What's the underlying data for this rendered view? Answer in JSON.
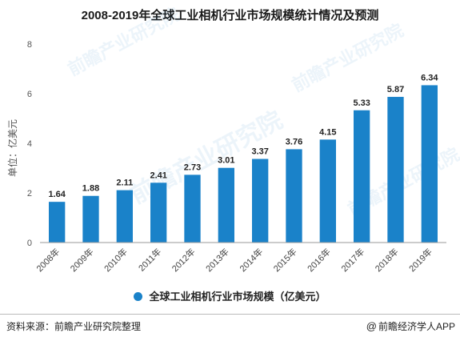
{
  "chart_data": {
    "type": "bar",
    "title": "2008-2019年全球工业相机行业市场规模统计情况及预测",
    "ylabel": "单位：亿美元",
    "categories": [
      "2008年",
      "2009年",
      "2010年",
      "2011年",
      "2012年",
      "2013年",
      "2014年",
      "2015年",
      "2016年",
      "2017年",
      "2018年",
      "2019年"
    ],
    "series": [
      {
        "name": "全球工业相机行业市场规模（亿美元）",
        "values": [
          1.64,
          1.88,
          2.11,
          2.41,
          2.73,
          3.01,
          3.37,
          3.76,
          4.15,
          5.33,
          5.87,
          6.34
        ]
      }
    ],
    "ylim": [
      0,
      8
    ],
    "yticks": [
      "0",
      "2",
      "4",
      "6",
      "8"
    ],
    "value_labels": [
      "1.64",
      "1.88",
      "2.11",
      "2.41",
      "2.73",
      "3.01",
      "3.37",
      "3.76",
      "4.15",
      "5.33",
      "5.87",
      "6.34"
    ],
    "grid": false,
    "legend": "bottom",
    "bar_color": "#1a82c9"
  },
  "footer": {
    "source": "资料来源：前瞻产业研究院整理",
    "credit_symbol": "@",
    "credit": "前瞻经济学人APP"
  },
  "watermark": {
    "brand": "前瞻产业研究院"
  }
}
